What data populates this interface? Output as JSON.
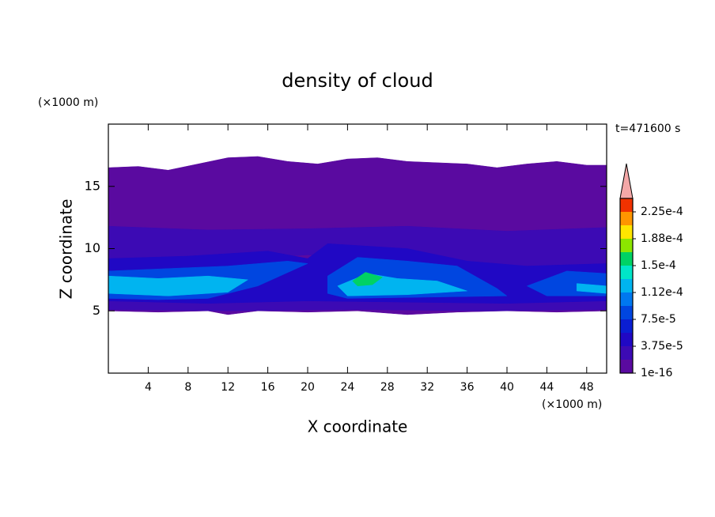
{
  "chart_data": {
    "type": "contour",
    "title": "density of cloud",
    "xlabel": "X coordinate",
    "ylabel": "Z coordinate",
    "xunit": "(×1000 m)",
    "yunit": "(×1000 m)",
    "annotation": "t=471600 s",
    "xlim": [
      0,
      50
    ],
    "ylim": [
      0,
      20
    ],
    "xticks": [
      4,
      8,
      12,
      16,
      20,
      24,
      28,
      32,
      36,
      40,
      44,
      48
    ],
    "yticks": [
      5,
      10,
      15
    ],
    "colorbar": {
      "clim": [
        1e-16,
        0.00024375
      ],
      "colors": [
        "#5a0aa0",
        "#3c0ab4",
        "#2008c4",
        "#0a1ed2",
        "#0046e0",
        "#0078f0",
        "#00b4f0",
        "#00e6c8",
        "#00d264",
        "#8ce600",
        "#ffe600",
        "#ff9600",
        "#f03200"
      ],
      "extend_color": "#f4a8a8",
      "ticks": [
        {
          "value": 1e-16,
          "label": "1e-16"
        },
        {
          "value": 3.75e-05,
          "label": "3.75e-5"
        },
        {
          "value": 7.5e-05,
          "label": "7.5e-5"
        },
        {
          "value": 0.0001125,
          "label": "1.12e-4"
        },
        {
          "value": 0.00015,
          "label": "1.5e-4"
        },
        {
          "value": 0.0001875,
          "label": "1.88e-4"
        },
        {
          "value": 0.000225,
          "label": "2.25e-4"
        }
      ]
    },
    "regions": [
      {
        "value": 9e-06,
        "x": [
          0,
          3,
          6,
          9,
          12,
          15,
          18,
          21,
          24,
          27,
          30,
          33,
          36,
          39,
          42,
          45,
          48,
          50,
          50,
          45,
          40,
          35,
          30,
          25,
          20,
          15,
          12,
          10,
          5,
          0
        ],
        "z": [
          16.5,
          16.6,
          16.3,
          16.8,
          17.3,
          17.4,
          17.0,
          16.8,
          17.2,
          17.3,
          17.0,
          16.9,
          16.8,
          16.5,
          16.8,
          17.0,
          16.7,
          16.7,
          5.0,
          4.9,
          5.0,
          4.9,
          4.7,
          5.0,
          4.9,
          5.0,
          4.7,
          5.0,
          4.9,
          5.0
        ]
      },
      {
        "value": 2.8e-05,
        "x": [
          0,
          10,
          20,
          30,
          40,
          50,
          50,
          40,
          30,
          20,
          10,
          0
        ],
        "z": [
          11.8,
          11.5,
          11.6,
          11.8,
          11.4,
          11.7,
          8.5,
          8.6,
          9.0,
          9.5,
          9.0,
          9.0
        ]
      },
      {
        "value": 2.8e-05,
        "x": [
          0,
          12,
          25,
          38,
          50,
          50,
          38,
          25,
          12,
          0
        ],
        "z": [
          6.0,
          6.1,
          5.9,
          6.0,
          6.0,
          5.1,
          5.0,
          5.1,
          5.0,
          5.1
        ]
      },
      {
        "value": 4.7e-05,
        "x": [
          0,
          8,
          16,
          20,
          22,
          30,
          36,
          42,
          50,
          50,
          40,
          30,
          20,
          10,
          0
        ],
        "z": [
          9.2,
          9.4,
          9.8,
          9.2,
          10.4,
          10.0,
          9.0,
          8.6,
          8.8,
          5.8,
          5.6,
          5.7,
          5.8,
          5.6,
          5.8
        ]
      },
      {
        "value": 8.4e-05,
        "x": [
          0,
          6,
          12,
          18,
          20,
          15,
          10,
          5,
          0
        ],
        "z": [
          8.2,
          8.4,
          8.6,
          9.0,
          8.8,
          7.0,
          6.0,
          5.9,
          6.0
        ]
      },
      {
        "value": 8.4e-05,
        "x": [
          22,
          25,
          30,
          35,
          39,
          40,
          32,
          24,
          22
        ],
        "z": [
          7.8,
          9.3,
          9.0,
          8.6,
          6.8,
          6.2,
          6.1,
          6.0,
          6.4
        ]
      },
      {
        "value": 8.4e-05,
        "x": [
          42,
          46,
          50,
          50,
          44
        ],
        "z": [
          7.0,
          8.2,
          8.0,
          6.2,
          6.2
        ]
      },
      {
        "value": 0.000122,
        "x": [
          0,
          5,
          10,
          14,
          12,
          6,
          0
        ],
        "z": [
          7.8,
          7.6,
          7.8,
          7.5,
          6.5,
          6.2,
          6.4
        ]
      },
      {
        "value": 0.000122,
        "x": [
          23,
          26,
          29,
          33,
          36,
          30,
          24
        ],
        "z": [
          7.0,
          8.0,
          7.6,
          7.4,
          6.6,
          6.3,
          6.2
        ]
      },
      {
        "value": 0.000122,
        "x": [
          47,
          50,
          50,
          47
        ],
        "z": [
          7.2,
          7.0,
          6.4,
          6.6
        ]
      },
      {
        "value": 0.00016,
        "x": [
          24.5,
          25.8,
          27.5,
          26.5,
          25
        ],
        "z": [
          7.4,
          8.1,
          7.7,
          7.1,
          7.0
        ]
      }
    ]
  }
}
